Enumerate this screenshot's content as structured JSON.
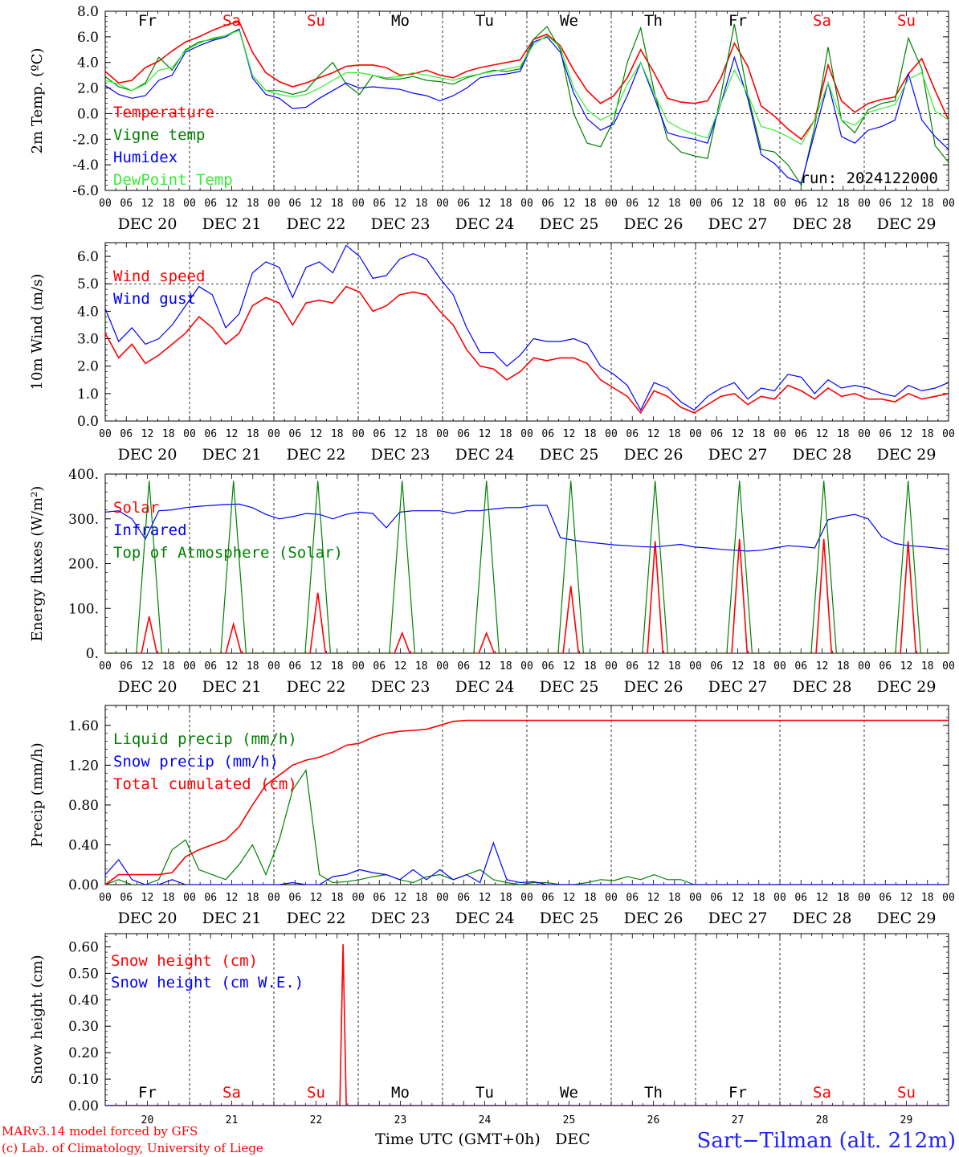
{
  "chart_data": [
    {
      "type": "line",
      "ylabel": "2m Temp. (ºC)",
      "ylim": [
        -6,
        8
      ],
      "yticks": [
        "8.0",
        "6.0",
        "4.0",
        "2.0",
        "0.0",
        "-2.0",
        "-4.0",
        "-6.0"
      ],
      "ytick_values": [
        8,
        6,
        4,
        2,
        0,
        -2,
        -4,
        -6
      ],
      "dashed_lines": [
        0
      ],
      "run_label": "run: 2024122000",
      "series": [
        {
          "name": "Temperature",
          "color": "#ff0000",
          "values": [
            3.3,
            2.4,
            2.6,
            3.6,
            4.1,
            4.9,
            5.6,
            6.0,
            6.5,
            6.9,
            7.2,
            4.8,
            3.2,
            2.5,
            2.1,
            2.4,
            2.8,
            3.2,
            3.7,
            3.8,
            3.8,
            3.6,
            3.0,
            3.1,
            3.4,
            3.0,
            2.8,
            3.3,
            3.6,
            3.8,
            4.0,
            4.2,
            5.8,
            6.2,
            5.3,
            3.4,
            1.8,
            0.8,
            1.4,
            2.8,
            5.0,
            3.2,
            1.2,
            0.9,
            0.8,
            1.0,
            2.8,
            5.5,
            3.7,
            0.6,
            -0.2,
            -1.2,
            -2.0,
            -0.5,
            3.8,
            1.0,
            0.1,
            0.8,
            1.1,
            1.3,
            3.1,
            4.3,
            1.8,
            -0.5
          ]
        },
        {
          "name": "Vigne temp",
          "color": "#008000",
          "values": [
            2.9,
            2.1,
            1.8,
            2.4,
            4.4,
            3.4,
            5.0,
            5.6,
            5.8,
            6.1,
            6.6,
            3.0,
            1.8,
            1.8,
            1.5,
            1.8,
            3.0,
            4.0,
            2.3,
            1.5,
            3.0,
            2.7,
            2.7,
            2.9,
            2.6,
            2.5,
            2.3,
            2.8,
            3.1,
            3.4,
            3.3,
            3.5,
            5.8,
            6.8,
            5.0,
            0.0,
            -2.3,
            -2.6,
            -0.5,
            4.0,
            6.7,
            1.8,
            -2.0,
            -3.0,
            -3.3,
            -3.5,
            1.5,
            7.0,
            1.5,
            -2.8,
            -3.0,
            -4.0,
            -5.6,
            -1.0,
            5.2,
            -0.5,
            -1.5,
            0.3,
            0.8,
            1.0,
            5.9,
            3.5,
            -2.5,
            -3.8
          ]
        },
        {
          "name": "Humidex",
          "color": "#0000ff",
          "values": [
            2.2,
            1.5,
            1.2,
            1.4,
            2.6,
            3.0,
            4.8,
            5.3,
            5.7,
            6.0,
            6.6,
            2.8,
            1.5,
            1.2,
            0.4,
            0.5,
            1.2,
            1.8,
            2.4,
            2.0,
            2.1,
            2.0,
            1.9,
            1.6,
            1.4,
            1.0,
            1.4,
            2.0,
            2.8,
            3.0,
            3.1,
            3.3,
            5.6,
            6.0,
            4.8,
            1.6,
            -0.4,
            -1.3,
            -0.8,
            1.4,
            4.0,
            1.3,
            -1.5,
            -1.8,
            -2.0,
            -2.3,
            0.8,
            4.4,
            1.2,
            -3.2,
            -3.9,
            -5.0,
            -5.4,
            -1.5,
            2.4,
            -1.8,
            -2.3,
            -1.3,
            -1.0,
            -0.5,
            3.1,
            -0.5,
            -1.8,
            -2.8
          ]
        },
        {
          "name": "DewPoint Temp",
          "color": "#33ee33",
          "values": [
            2.6,
            2.3,
            1.8,
            2.3,
            3.4,
            3.6,
            4.9,
            5.5,
            5.9,
            6.1,
            6.5,
            3.0,
            1.8,
            1.5,
            1.3,
            1.5,
            2.0,
            2.6,
            3.2,
            3.2,
            3.0,
            2.8,
            2.9,
            3.2,
            3.0,
            2.8,
            2.6,
            2.9,
            3.1,
            3.3,
            3.5,
            3.7,
            5.4,
            6.1,
            5.2,
            2.0,
            0.3,
            -0.5,
            0.0,
            2.3,
            4.0,
            1.6,
            -0.6,
            -1.2,
            -1.6,
            -1.9,
            0.8,
            3.4,
            1.5,
            -1.0,
            -1.3,
            -1.8,
            -2.4,
            -0.5,
            2.4,
            -0.5,
            -0.9,
            0.1,
            0.4,
            0.7,
            2.7,
            3.2,
            0.2,
            -0.5
          ]
        }
      ]
    },
    {
      "type": "line",
      "ylabel": "10m Wind (m/s)",
      "ylim": [
        0,
        6.5
      ],
      "yticks": [
        "6.0",
        "5.0",
        "4.0",
        "3.0",
        "2.0",
        "1.0",
        "0.0"
      ],
      "ytick_values": [
        6,
        5,
        4,
        3,
        2,
        1,
        0
      ],
      "dashed_lines": [
        5
      ],
      "series": [
        {
          "name": "Wind speed",
          "color": "#ff0000",
          "values": [
            3.2,
            2.3,
            2.8,
            2.1,
            2.4,
            2.8,
            3.2,
            3.8,
            3.4,
            2.8,
            3.2,
            4.2,
            4.5,
            4.3,
            3.5,
            4.3,
            4.4,
            4.3,
            4.9,
            4.7,
            4.0,
            4.2,
            4.6,
            4.7,
            4.6,
            4.0,
            3.5,
            2.6,
            2.0,
            1.9,
            1.5,
            1.8,
            2.3,
            2.2,
            2.3,
            2.3,
            2.1,
            1.5,
            1.2,
            0.9,
            0.3,
            1.1,
            0.9,
            0.5,
            0.3,
            0.6,
            0.9,
            1.0,
            0.6,
            0.9,
            0.8,
            1.3,
            1.1,
            0.8,
            1.2,
            0.9,
            1.0,
            0.8,
            0.8,
            0.7,
            1.0,
            0.8,
            0.9,
            1.0
          ]
        },
        {
          "name": "Wind gust",
          "color": "#0000ff",
          "values": [
            4.1,
            2.9,
            3.4,
            2.8,
            3.0,
            3.5,
            4.2,
            4.9,
            4.6,
            3.4,
            3.9,
            5.4,
            5.8,
            5.6,
            4.5,
            5.6,
            5.8,
            5.4,
            6.4,
            6.0,
            5.2,
            5.3,
            5.9,
            6.1,
            5.9,
            5.2,
            4.6,
            3.4,
            2.5,
            2.5,
            2.0,
            2.4,
            3.0,
            2.9,
            2.9,
            3.0,
            2.8,
            2.0,
            1.7,
            1.3,
            0.4,
            1.4,
            1.2,
            0.7,
            0.4,
            0.9,
            1.2,
            1.4,
            0.8,
            1.2,
            1.1,
            1.7,
            1.6,
            1.0,
            1.5,
            1.2,
            1.3,
            1.2,
            1.0,
            0.9,
            1.3,
            1.1,
            1.2,
            1.4
          ]
        }
      ]
    },
    {
      "type": "line",
      "ylabel": "Energy fluxes (W/m²)",
      "ylim": [
        0,
        400
      ],
      "yticks": [
        "400.",
        "300.",
        "200.",
        "100.",
        "0."
      ],
      "ytick_values": [
        400,
        300,
        200,
        100,
        0
      ],
      "dashed_lines": [],
      "series": [
        {
          "name": "Solar",
          "color": "#ff0000",
          "day_peaks": [
            82,
            65,
            135,
            45,
            45,
            150,
            250,
            255,
            255,
            250
          ]
        },
        {
          "name": "Infrared",
          "color": "#0000ff",
          "values": [
            315,
            318,
            300,
            255,
            318,
            320,
            325,
            328,
            330,
            332,
            333,
            325,
            310,
            300,
            305,
            312,
            310,
            300,
            310,
            315,
            312,
            280,
            315,
            318,
            318,
            318,
            312,
            318,
            318,
            322,
            325,
            325,
            330,
            330,
            258,
            252,
            248,
            245,
            242,
            240,
            238,
            237,
            240,
            243,
            237,
            235,
            232,
            230,
            228,
            230,
            235,
            240,
            238,
            235,
            298,
            305,
            310,
            300,
            260,
            245,
            240,
            238,
            235,
            232
          ]
        },
        {
          "name": "Top of Atmosphere (Solar)",
          "color": "#008000",
          "day_peaks": [
            385,
            385,
            385,
            385,
            385,
            385,
            385,
            385,
            385,
            385
          ]
        }
      ]
    },
    {
      "type": "line",
      "ylabel": "Precip (mm/h)",
      "ylim": [
        0,
        1.8
      ],
      "yticks": [
        "1.60",
        "1.20",
        "0.80",
        "0.40",
        "0.00"
      ],
      "ytick_values": [
        1.6,
        1.2,
        0.8,
        0.4,
        0
      ],
      "dashed_lines": [],
      "series": [
        {
          "name": "Liquid precip (mm/h)",
          "color": "#008000",
          "values": [
            0.0,
            0.05,
            0.0,
            0.0,
            0.05,
            0.35,
            0.45,
            0.15,
            0.1,
            0.05,
            0.2,
            0.4,
            0.1,
            0.45,
            0.95,
            1.15,
            0.1,
            0.02,
            0.03,
            0.05,
            0.08,
            0.1,
            0.05,
            0.02,
            0.08,
            0.1,
            0.05,
            0.1,
            0.15,
            0.05,
            0.02,
            0.0,
            0.02,
            0.02,
            0.0,
            0.0,
            0.02,
            0.05,
            0.04,
            0.08,
            0.05,
            0.1,
            0.05,
            0.05,
            0.0,
            0.0,
            0.0,
            0.0,
            0.0,
            0.0,
            0.0,
            0.0,
            0.0,
            0.0,
            0.0,
            0.0,
            0.0,
            0.0,
            0.0,
            0.0,
            0.0,
            0.0,
            0.0,
            0.0
          ]
        },
        {
          "name": "Snow precip (mm/h)",
          "color": "#0000ff",
          "values": [
            0.1,
            0.25,
            0.05,
            0.0,
            0.0,
            0.05,
            0.0,
            0.0,
            0.0,
            0.0,
            0.0,
            0.0,
            0.0,
            0.0,
            0.02,
            0.0,
            0.0,
            0.08,
            0.1,
            0.15,
            0.12,
            0.1,
            0.05,
            0.15,
            0.05,
            0.15,
            0.05,
            0.1,
            0.02,
            0.42,
            0.05,
            0.02,
            0.03,
            0.0,
            0.0,
            0.0,
            0.0,
            0.0,
            0.0,
            0.0,
            0.0,
            0.0,
            0.0,
            0.0,
            0.0,
            0.0,
            0.0,
            0.0,
            0.0,
            0.0,
            0.0,
            0.0,
            0.0,
            0.0,
            0.0,
            0.0,
            0.0,
            0.0,
            0.0,
            0.0,
            0.0,
            0.0,
            0.0,
            0.0
          ]
        },
        {
          "name": "Total cumulated (cm)",
          "color": "#ff0000",
          "values": [
            0.0,
            0.1,
            0.1,
            0.1,
            0.1,
            0.12,
            0.28,
            0.35,
            0.4,
            0.45,
            0.58,
            0.8,
            1.0,
            1.1,
            1.2,
            1.25,
            1.28,
            1.33,
            1.4,
            1.42,
            1.48,
            1.52,
            1.54,
            1.55,
            1.56,
            1.6,
            1.64,
            1.65,
            1.65,
            1.65,
            1.65,
            1.65,
            1.65,
            1.65,
            1.65,
            1.65,
            1.65,
            1.65,
            1.65,
            1.65,
            1.65,
            1.65,
            1.65,
            1.65,
            1.65,
            1.65,
            1.65,
            1.65,
            1.65,
            1.65,
            1.65,
            1.65,
            1.65,
            1.65,
            1.65,
            1.65,
            1.65,
            1.65,
            1.65,
            1.65,
            1.65,
            1.65,
            1.65,
            1.65
          ]
        }
      ]
    },
    {
      "type": "line",
      "ylabel": "Snow height (cm)",
      "ylim": [
        0,
        0.65
      ],
      "yticks": [
        "0.60",
        "0.50",
        "0.40",
        "0.30",
        "0.20",
        "0.10",
        "0.00"
      ],
      "ytick_values": [
        0.6,
        0.5,
        0.4,
        0.3,
        0.2,
        0.1,
        0
      ],
      "dashed_lines": [],
      "series": [
        {
          "name": "Snow height (cm)",
          "color": "#ff0000",
          "spike": {
            "day": 2.82,
            "value": 0.61
          }
        },
        {
          "name": "Snow height (cm W.E.)",
          "color": "#0000ff"
        }
      ]
    }
  ],
  "x_axis": {
    "hour_ticks": [
      "00",
      "06",
      "12",
      "18"
    ],
    "end_tick": "00",
    "date_labels": [
      "DEC 20",
      "DEC 21",
      "DEC 22",
      "DEC 23",
      "DEC 24",
      "DEC 25",
      "DEC 26",
      "DEC 27",
      "DEC 28",
      "DEC 29"
    ],
    "weekdays": [
      "Fr",
      "Sa",
      "Su",
      "Mo",
      "Tu",
      "We",
      "Th",
      "Fr",
      "Sa",
      "Su"
    ],
    "weekday_colors": [
      "#000000",
      "#ff0000",
      "#ff0000",
      "#000000",
      "#000000",
      "#000000",
      "#000000",
      "#000000",
      "#ff0000",
      "#ff0000"
    ],
    "day_numbers": [
      "20",
      "21",
      "22",
      "23",
      "24",
      "25",
      "26",
      "27",
      "28",
      "29"
    ],
    "title": "Time UTC (GMT+0h)",
    "month": "DEC"
  },
  "footer": {
    "credit_line1": "MARv3.14 model forced by GFS",
    "credit_line2": "(c) Lab. of Climatology, University of Liege",
    "station": "Sart−Tilman (alt. 212m)"
  }
}
